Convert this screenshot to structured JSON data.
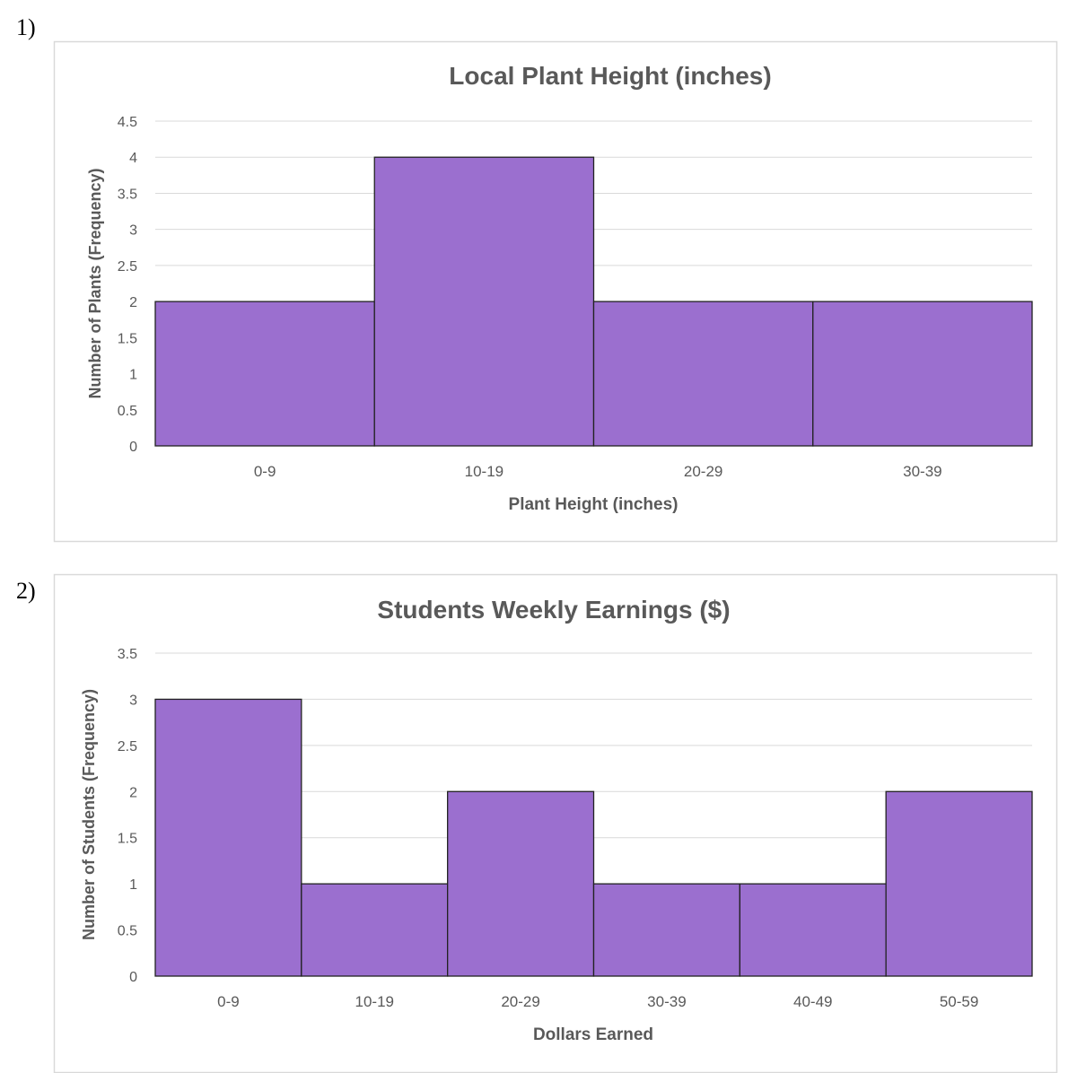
{
  "questions": [
    "1)",
    "2)"
  ],
  "colors": {
    "bar": "#9b6fcf",
    "bar_stroke": "#222222",
    "grid": "#d9d9d9",
    "text": "#595959",
    "frame": "#d9d9d9"
  },
  "chart_data": [
    {
      "type": "bar",
      "title": "Local Plant Height (inches)",
      "xlabel": "Plant Height (inches)",
      "ylabel": "Number of Plants (Frequency)",
      "categories": [
        "0-9",
        "10-19",
        "20-29",
        "30-39"
      ],
      "values": [
        2,
        4,
        2,
        2
      ],
      "ylim": [
        0,
        4.5
      ],
      "yticks": [
        "0",
        "0.5",
        "1",
        "1.5",
        "2",
        "2.5",
        "3",
        "3.5",
        "4",
        "4.5"
      ],
      "grid": true,
      "legend": "none"
    },
    {
      "type": "bar",
      "title": "Students Weekly Earnings ($)",
      "xlabel": "Dollars Earned",
      "ylabel": "Number of Students (Frequency)",
      "categories": [
        "0-9",
        "10-19",
        "20-29",
        "30-39",
        "40-49",
        "50-59"
      ],
      "values": [
        3,
        1,
        2,
        1,
        1,
        2
      ],
      "ylim": [
        0,
        3.5
      ],
      "yticks": [
        "0",
        "0.5",
        "1",
        "1.5",
        "2",
        "2.5",
        "3",
        "3.5"
      ],
      "grid": true,
      "legend": "none"
    }
  ]
}
